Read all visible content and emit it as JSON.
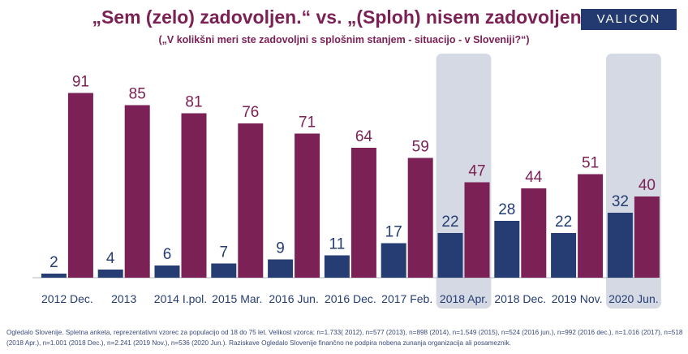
{
  "header": {
    "title": "„Sem (zelo) zadovoljen.“ vs. „(Sploh) nisem zadovoljen.“",
    "subtitle": "(„V kolikšni meri ste zadovoljni s splošnim stanjem  - situacijo - v Sloveniji?“)",
    "logo": "VALICON"
  },
  "colors": {
    "satisfied": "#253d73",
    "dissatisfied": "#7b2155",
    "highlight": "#d5d9e3",
    "title": "#7b2155"
  },
  "chart_data": {
    "type": "bar",
    "categories": [
      "2012 Dec.",
      "2013",
      "2014 I.pol.",
      "2015 Mar.",
      "2016 Jun.",
      "2016 Dec.",
      "2017 Feb.",
      "2018 Apr.",
      "2018 Dec.",
      "2019 Nov.",
      "2020 Jun."
    ],
    "series": [
      {
        "values": [
          2,
          4,
          6,
          7,
          9,
          11,
          17,
          22,
          28,
          22,
          32
        ]
      },
      {
        "values": [
          91,
          85,
          81,
          76,
          71,
          64,
          59,
          47,
          44,
          51,
          40
        ]
      }
    ],
    "highlighted_categories": [
      "2018 Apr.",
      "2020 Jun."
    ],
    "ylim": [
      0,
      100
    ],
    "grid": false,
    "legend": "none"
  },
  "footnote": "Ogledalo Slovenije. Spletna  anketa, reprezentativni  vzorec za populacijo  od 18 do 75 let. Velikost vzorca: n=1.733( 2012), n=577 (2013), n=898 (2014), n=1.549 (2015), n=524 (2016 jun.), n=992 (2016 dec.), n=1.016 (2017), n=518 (2018 Apr.), n=1.001 (2018 Dec.), n=2.241 (2019 Nov.), n=536 (2020 Jun.). Raziskave Ogledalo Slovenije finančno ne podpira nobena zunanja organizacija ali posameznik."
}
